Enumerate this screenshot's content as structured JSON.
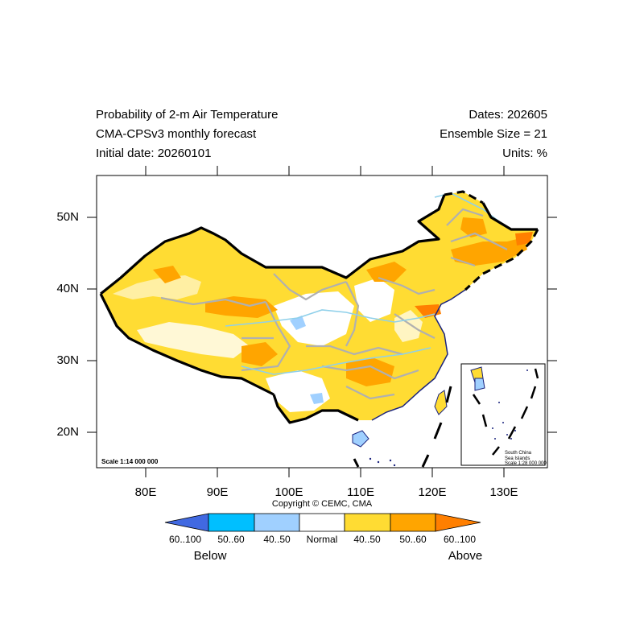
{
  "header": {
    "title_line1": "Probability of 2-m Air Temperature",
    "title_line2": "CMA-CPSv3 monthly forecast",
    "title_line3": "Initial date: 20260101",
    "dates": "Dates: 202605",
    "ensemble": "Ensemble Size = 21",
    "units": "Units: %"
  },
  "axes": {
    "x_ticks": [
      "80E",
      "90E",
      "100E",
      "110E",
      "120E",
      "130E"
    ],
    "y_ticks": [
      "50N",
      "40N",
      "30N",
      "20N"
    ],
    "lon_range": [
      73,
      135
    ],
    "lat_range": [
      15,
      56
    ]
  },
  "map": {
    "scale_label": "Scale 1:14 000 000",
    "copyright": "Copyright © CEMC, CMA",
    "inset_line1": "South China",
    "inset_line2": "Sea Islands",
    "inset_line3": "Scale 1:28 000 000"
  },
  "colorbar": {
    "labels": [
      "60..100",
      "50..60",
      "40..50",
      "Normal",
      "40..50",
      "50..60",
      "60..100"
    ],
    "below_label": "Below",
    "above_label": "Above",
    "colors": [
      "#4169e1",
      "#00bfff",
      "#a0d0ff",
      "#ffffff",
      "#ffdc33",
      "#ffa500",
      "#ff7f00"
    ]
  }
}
